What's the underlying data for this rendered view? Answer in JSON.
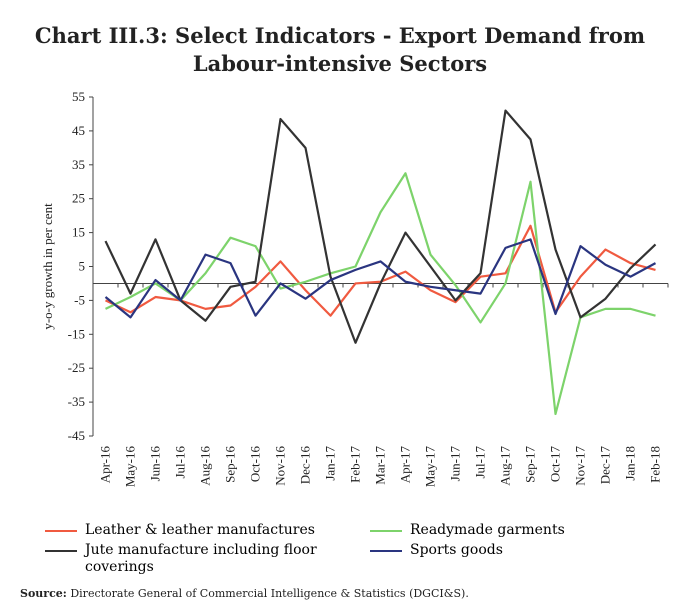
{
  "chart_data": {
    "type": "line",
    "title": "Chart III.3: Select Indicators - Export Demand from Labour-intensive Sectors",
    "y_label": "y-o-y growth in per cent",
    "categories": [
      "Apr-16",
      "May-16",
      "Jun-16",
      "Jul-16",
      "Aug-16",
      "Sep-16",
      "Oct-16",
      "Nov-16",
      "Dec-16",
      "Jan-17",
      "Feb-17",
      "Mar-17",
      "Apr-17",
      "May-17",
      "Jun-17",
      "Jul-17",
      "Aug-17",
      "Sep-17",
      "Oct-17",
      "Nov-17",
      "Dec-17",
      "Jan-18",
      "Feb-18"
    ],
    "series": [
      {
        "name": "Leather & leather manufactures",
        "color": "#f05a40",
        "values": [
          -5,
          -8.5,
          -4,
          -5,
          -7.5,
          -6.5,
          -1,
          6.5,
          -2,
          -9.5,
          0,
          0.5,
          3.5,
          -2,
          -5.5,
          2,
          3,
          17,
          -8.5,
          2,
          10,
          6,
          4
        ]
      },
      {
        "name": "Readymade garments",
        "color": "#7dd36b",
        "values": [
          -7.5,
          -4,
          0,
          -5,
          3,
          13.5,
          11,
          -1.5,
          0.5,
          3,
          5,
          21,
          32.5,
          8.5,
          -0.5,
          -11.5,
          0,
          30,
          -38.5,
          -10,
          -7.5,
          -7.5,
          -9.5
        ]
      },
      {
        "name": "Jute manufacture including floor coverings",
        "color": "#333333",
        "values": [
          12.5,
          -3,
          13,
          -5,
          -11,
          -1,
          0.5,
          48.5,
          40,
          2,
          -17.5,
          0,
          15,
          5,
          -5,
          3,
          51,
          42.5,
          10,
          -10,
          -4.5,
          4.5,
          11.5
        ]
      },
      {
        "name": "Sports goods",
        "color": "#2a3580",
        "values": [
          -4,
          -10,
          1,
          -5,
          8.5,
          6,
          -9.5,
          0,
          -4.5,
          1,
          4,
          6.5,
          0.5,
          -1,
          -2,
          -3,
          10.5,
          13,
          -9,
          11,
          5.5,
          2,
          6
        ]
      }
    ],
    "ylim": [
      -45,
      55
    ],
    "yticks": [
      -45,
      -35,
      -25,
      -15,
      -5,
      5,
      15,
      25,
      35,
      45,
      55
    ],
    "source_label": "Source:",
    "source": "Directorate General of Commercial Intelligence & Statistics (DGCI&S)."
  }
}
